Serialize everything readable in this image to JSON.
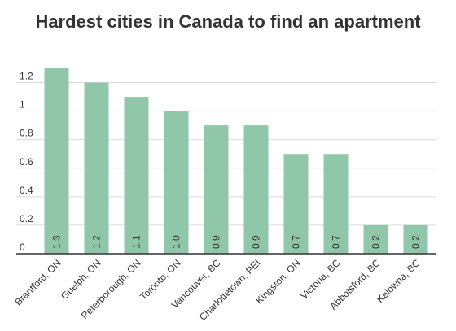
{
  "chart_data": {
    "type": "bar",
    "title": "Hardest cities in Canada to find an apartment",
    "categories": [
      "Brantford, ON",
      "Guelph, ON",
      "Peterborough, ON",
      "Toronto, ON",
      "Vancouver, BC",
      "Charlottetown, PEI",
      "Kingston, ON",
      "Victoria, BC",
      "Abbotsford, BC",
      "Kelowna, BC"
    ],
    "values": [
      1.3,
      1.2,
      1.1,
      1.0,
      0.9,
      0.9,
      0.7,
      0.7,
      0.2,
      0.2
    ],
    "data_labels": [
      "1.3",
      "1.2",
      "1.1",
      "1.0",
      "0.9",
      "0.9",
      "0.7",
      "0.7",
      "0.2",
      "0.2"
    ],
    "yticks": [
      0,
      0.2,
      0.4,
      0.6,
      0.8,
      1,
      1.2
    ],
    "ytick_labels": [
      "0",
      "0.2",
      "0.4",
      "0.6",
      "0.8",
      "1",
      "1.2"
    ],
    "ylim": [
      0,
      1.3
    ],
    "bar_color": "#8fc7a8",
    "grid": true,
    "xlabel": "",
    "ylabel": ""
  }
}
